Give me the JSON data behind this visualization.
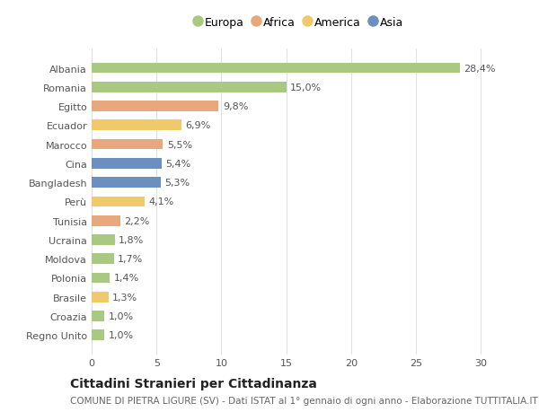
{
  "categories": [
    "Albania",
    "Romania",
    "Egitto",
    "Ecuador",
    "Marocco",
    "Cina",
    "Bangladesh",
    "Perù",
    "Tunisia",
    "Ucraina",
    "Moldova",
    "Polonia",
    "Brasile",
    "Croazia",
    "Regno Unito"
  ],
  "values": [
    28.4,
    15.0,
    9.8,
    6.9,
    5.5,
    5.4,
    5.3,
    4.1,
    2.2,
    1.8,
    1.7,
    1.4,
    1.3,
    1.0,
    1.0
  ],
  "labels": [
    "28,4%",
    "15,0%",
    "9,8%",
    "6,9%",
    "5,5%",
    "5,4%",
    "5,3%",
    "4,1%",
    "2,2%",
    "1,8%",
    "1,7%",
    "1,4%",
    "1,3%",
    "1,0%",
    "1,0%"
  ],
  "continent": [
    "Europa",
    "Europa",
    "Africa",
    "America",
    "Africa",
    "Asia",
    "Asia",
    "America",
    "Africa",
    "Europa",
    "Europa",
    "Europa",
    "America",
    "Europa",
    "Europa"
  ],
  "colors": {
    "Europa": "#a8c97f",
    "Africa": "#e8a87c",
    "America": "#f0c96a",
    "Asia": "#6a8fc0"
  },
  "legend_order": [
    "Europa",
    "Africa",
    "America",
    "Asia"
  ],
  "title": "Cittadini Stranieri per Cittadinanza",
  "subtitle": "COMUNE DI PIETRA LIGURE (SV) - Dati ISTAT al 1° gennaio di ogni anno - Elaborazione TUTTITALIA.IT",
  "xlim": [
    0,
    32
  ],
  "xticks": [
    0,
    5,
    10,
    15,
    20,
    25,
    30
  ],
  "background_color": "#ffffff",
  "plot_bg_color": "#ffffff",
  "grid_color": "#e0e0e0",
  "bar_height": 0.55,
  "title_fontsize": 10,
  "subtitle_fontsize": 7.5,
  "label_fontsize": 8,
  "tick_fontsize": 8,
  "legend_fontsize": 9
}
